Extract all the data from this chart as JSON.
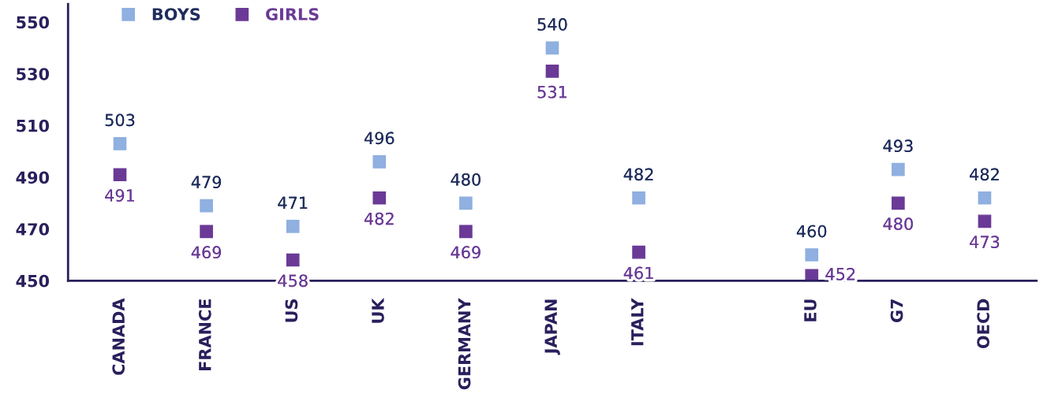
{
  "chart_data": {
    "type": "scatter",
    "categories": [
      "CANADA",
      "FRANCE",
      "US",
      "UK",
      "GERMANY",
      "JAPAN",
      "ITALY",
      null,
      "EU",
      "G7",
      "OECD"
    ],
    "series": [
      {
        "name": "BOYS",
        "color": "#8fb0e0",
        "values": [
          503,
          479,
          471,
          496,
          480,
          540,
          482,
          null,
          460,
          493,
          482
        ]
      },
      {
        "name": "GIRLS",
        "color": "#6a3a96",
        "values": [
          491,
          469,
          458,
          482,
          469,
          531,
          461,
          null,
          452,
          480,
          473
        ]
      }
    ],
    "ylim": [
      450,
      557
    ],
    "yticks": [
      450,
      470,
      490,
      510,
      530,
      550
    ],
    "marker": "square",
    "data_labels": true,
    "grid": false,
    "legend": "top left"
  }
}
